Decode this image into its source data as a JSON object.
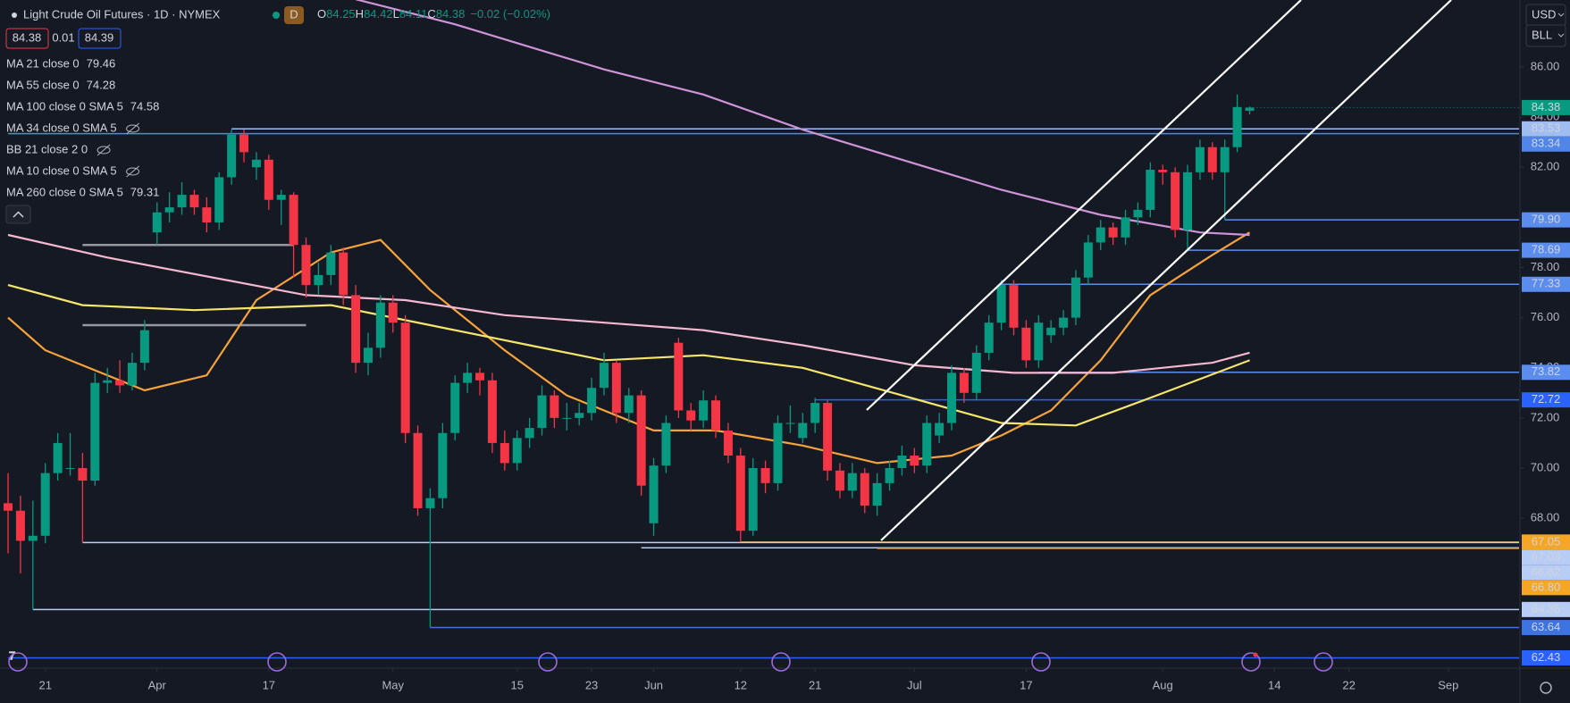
{
  "chart_data": {
    "type": "candlestick",
    "title": "Light Crude Oil Futures · 1D · NYMEX",
    "badge": "D",
    "ohlc": [
      "O",
      "84.25",
      "H",
      "84.42",
      "L",
      "84.11",
      "C",
      "84.38",
      "−0.02 (−0.02%)"
    ],
    "bid": "84.38",
    "spread": "0.01",
    "ask": "84.39",
    "currency": "USD",
    "unit": "BLL",
    "up_color": "#089981",
    "down_color": "#f23645",
    "grid": false,
    "ylim": [
      62.02,
      88.67
    ],
    "xlim": [
      -0.65,
      121.7
    ],
    "yticks": [
      {
        "value": 86,
        "label": "86.00"
      },
      {
        "value": 84,
        "label": "84.00"
      },
      {
        "value": 82,
        "label": "82.00"
      },
      {
        "value": 78,
        "label": "78.00"
      },
      {
        "value": 76,
        "label": "76.00"
      },
      {
        "value": 74,
        "label": "74.00"
      },
      {
        "value": 72,
        "label": "72.00"
      },
      {
        "value": 70,
        "label": "70.00"
      },
      {
        "value": 68,
        "label": "68.00"
      }
    ],
    "xticks": [
      {
        "value": 3,
        "label": "21"
      },
      {
        "value": 12,
        "label": "Apr"
      },
      {
        "value": 21,
        "label": "17"
      },
      {
        "value": 31,
        "label": "May"
      },
      {
        "value": 41,
        "label": "15"
      },
      {
        "value": 47,
        "label": "23"
      },
      {
        "value": 52,
        "label": "Jun"
      },
      {
        "value": 59,
        "label": "12"
      },
      {
        "value": 65,
        "label": "21"
      },
      {
        "value": 73,
        "label": "Jul"
      },
      {
        "value": 82,
        "label": "17"
      },
      {
        "value": 93,
        "label": "Aug"
      },
      {
        "value": 102,
        "label": "14"
      },
      {
        "value": 108,
        "label": "22"
      },
      {
        "value": 116,
        "label": "Sep"
      }
    ],
    "candles": [
      [
        68.6,
        69.8,
        66.6,
        68.3
      ],
      [
        68.3,
        68.9,
        65.8,
        67.1
      ],
      [
        67.1,
        68.7,
        64.36,
        67.3
      ],
      [
        67.3,
        70.2,
        67.0,
        69.8
      ],
      [
        69.8,
        71.4,
        69.5,
        71.0
      ],
      [
        70.0,
        71.4,
        69.7,
        70.0
      ],
      [
        70.0,
        70.6,
        67.03,
        69.5
      ],
      [
        69.5,
        73.8,
        69.3,
        73.4
      ],
      [
        73.4,
        74.0,
        73.0,
        73.5
      ],
      [
        73.5,
        74.3,
        73.0,
        73.3
      ],
      [
        73.3,
        74.6,
        73.1,
        74.2
      ],
      [
        74.2,
        75.9,
        73.9,
        75.5
      ],
      [
        79.4,
        80.6,
        78.9,
        80.2
      ],
      [
        80.2,
        81.0,
        79.8,
        80.4
      ],
      [
        80.4,
        81.4,
        80.1,
        80.9
      ],
      [
        80.9,
        81.1,
        80.1,
        80.4
      ],
      [
        80.4,
        80.8,
        79.4,
        79.8
      ],
      [
        79.8,
        81.8,
        79.5,
        81.6
      ],
      [
        81.6,
        83.5,
        81.3,
        83.3
      ],
      [
        83.3,
        83.5,
        82.2,
        82.6
      ],
      [
        82.0,
        82.6,
        81.5,
        82.3
      ],
      [
        82.3,
        82.5,
        80.3,
        80.7
      ],
      [
        80.7,
        81.1,
        79.7,
        80.9
      ],
      [
        80.9,
        81.0,
        77.6,
        78.9
      ],
      [
        78.9,
        79.2,
        76.8,
        77.3
      ],
      [
        77.3,
        78.2,
        76.9,
        77.7
      ],
      [
        77.7,
        78.9,
        77.3,
        78.6
      ],
      [
        78.6,
        78.8,
        76.5,
        76.9
      ],
      [
        76.9,
        77.3,
        73.8,
        74.2
      ],
      [
        74.2,
        75.4,
        73.7,
        74.8
      ],
      [
        74.8,
        76.9,
        74.4,
        76.6
      ],
      [
        76.6,
        76.9,
        75.4,
        75.8
      ],
      [
        75.8,
        76.1,
        71.0,
        71.4
      ],
      [
        71.4,
        71.7,
        68.1,
        68.4
      ],
      [
        68.4,
        69.2,
        63.64,
        68.8
      ],
      [
        68.8,
        71.8,
        68.4,
        71.4
      ],
      [
        71.4,
        73.7,
        71.1,
        73.4
      ],
      [
        73.4,
        74.2,
        73.0,
        73.8
      ],
      [
        73.8,
        74.0,
        72.9,
        73.5
      ],
      [
        73.5,
        73.8,
        70.6,
        71.0
      ],
      [
        71.0,
        71.5,
        69.9,
        70.2
      ],
      [
        70.2,
        71.5,
        69.9,
        71.2
      ],
      [
        71.2,
        72.0,
        70.8,
        71.6
      ],
      [
        71.6,
        73.3,
        71.3,
        72.9
      ],
      [
        72.9,
        73.1,
        71.6,
        72.0
      ],
      [
        72.0,
        72.6,
        71.5,
        72.0
      ],
      [
        72.0,
        72.6,
        71.7,
        72.2
      ],
      [
        72.2,
        73.6,
        71.9,
        73.2
      ],
      [
        73.2,
        74.6,
        72.9,
        74.2
      ],
      [
        74.2,
        74.3,
        71.8,
        72.2
      ],
      [
        72.2,
        73.2,
        71.8,
        72.9
      ],
      [
        72.9,
        73.1,
        68.9,
        69.3
      ],
      [
        67.8,
        70.4,
        67.3,
        70.1
      ],
      [
        70.1,
        72.1,
        69.8,
        71.8
      ],
      [
        75.0,
        75.2,
        72.0,
        72.3
      ],
      [
        72.3,
        72.6,
        71.5,
        71.9
      ],
      [
        71.9,
        73.1,
        71.6,
        72.7
      ],
      [
        72.7,
        72.9,
        71.2,
        71.5
      ],
      [
        71.5,
        71.8,
        70.2,
        70.5
      ],
      [
        70.5,
        70.8,
        67.05,
        67.5
      ],
      [
        67.5,
        70.4,
        67.3,
        70.0
      ],
      [
        70.0,
        70.3,
        69.0,
        69.4
      ],
      [
        69.4,
        72.1,
        69.1,
        71.8
      ],
      [
        71.8,
        72.5,
        71.4,
        71.8
      ],
      [
        71.2,
        72.2,
        71.0,
        71.8
      ],
      [
        71.8,
        72.8,
        71.4,
        72.6
      ],
      [
        72.6,
        72.7,
        69.5,
        69.9
      ],
      [
        69.9,
        70.2,
        68.8,
        69.1
      ],
      [
        69.1,
        70.2,
        68.8,
        69.8
      ],
      [
        69.8,
        70.0,
        68.2,
        68.5
      ],
      [
        68.5,
        69.8,
        68.1,
        69.4
      ],
      [
        69.4,
        70.3,
        69.1,
        70.0
      ],
      [
        70.0,
        70.9,
        69.7,
        70.5
      ],
      [
        70.5,
        70.8,
        69.8,
        70.1
      ],
      [
        70.1,
        72.1,
        69.8,
        71.8
      ],
      [
        71.3,
        72.2,
        71.0,
        71.8
      ],
      [
        71.8,
        74.1,
        71.5,
        73.8
      ],
      [
        73.8,
        74.0,
        72.6,
        73.0
      ],
      [
        73.0,
        74.9,
        72.7,
        74.6
      ],
      [
        74.6,
        76.1,
        74.3,
        75.8
      ],
      [
        75.8,
        77.5,
        75.5,
        77.3
      ],
      [
        77.3,
        77.5,
        75.3,
        75.6
      ],
      [
        75.6,
        75.9,
        74.0,
        74.3
      ],
      [
        74.3,
        76.1,
        74.0,
        75.8
      ],
      [
        75.3,
        75.9,
        75.0,
        75.6
      ],
      [
        75.6,
        76.3,
        75.3,
        76.0
      ],
      [
        76.0,
        77.9,
        75.7,
        77.6
      ],
      [
        77.6,
        79.3,
        77.3,
        79.0
      ],
      [
        79.0,
        79.9,
        78.7,
        79.6
      ],
      [
        79.6,
        79.8,
        78.9,
        79.2
      ],
      [
        79.2,
        80.3,
        78.9,
        80.0
      ],
      [
        80.0,
        80.6,
        79.7,
        80.3
      ],
      [
        80.3,
        82.2,
        80.0,
        81.9
      ],
      [
        81.9,
        82.1,
        81.3,
        81.8
      ],
      [
        81.8,
        82.0,
        79.2,
        79.5
      ],
      [
        79.5,
        82.1,
        78.69,
        81.8
      ],
      [
        81.8,
        83.1,
        81.5,
        82.8
      ],
      [
        82.8,
        83.0,
        81.5,
        81.8
      ],
      [
        81.8,
        83.1,
        79.9,
        82.8
      ],
      [
        82.8,
        84.9,
        82.6,
        84.4
      ],
      [
        84.25,
        84.42,
        84.11,
        84.38
      ]
    ],
    "series": [
      {
        "label": "MA 21 close 0",
        "last": 79.46,
        "color": "#f7a33b",
        "x": [
          0,
          3,
          11,
          16,
          20,
          26,
          30,
          34,
          40,
          45,
          52,
          57,
          64,
          70,
          76,
          80,
          84,
          88,
          92,
          97,
          100
        ],
        "values": [
          76.0,
          74.7,
          73.1,
          73.7,
          76.7,
          78.6,
          79.1,
          77.1,
          74.7,
          72.9,
          71.5,
          71.5,
          70.9,
          70.2,
          70.5,
          71.3,
          72.3,
          74.3,
          76.9,
          78.5,
          79.4
        ]
      },
      {
        "label": "MA 55 close 0",
        "last": 74.28,
        "color": "#f5e66b",
        "x": [
          0,
          6,
          15,
          26,
          34,
          42,
          48,
          56,
          64,
          72,
          80,
          86,
          92,
          100
        ],
        "values": [
          77.3,
          76.5,
          76.3,
          76.5,
          75.7,
          74.9,
          74.3,
          74.5,
          74.0,
          72.9,
          71.8,
          71.7,
          72.8,
          74.3
        ]
      },
      {
        "label": "MA 100 close 0 SMA 5",
        "last": 74.58,
        "color": "#f4b8cf",
        "x": [
          0,
          8,
          24,
          32,
          40,
          48,
          56,
          64,
          73,
          81,
          89,
          97,
          100
        ],
        "values": [
          79.3,
          78.4,
          76.9,
          76.7,
          76.1,
          75.8,
          75.5,
          74.9,
          74.1,
          73.8,
          73.8,
          74.2,
          74.6
        ]
      },
      {
        "label": "MA 34 close 0 SMA 5",
        "hidden": true
      },
      {
        "label": "BB 21 close 2 0",
        "hidden": true
      },
      {
        "label": "MA 10 close 0 SMA 5",
        "hidden": true
      },
      {
        "label": "MA 260 close 0 SMA 5",
        "last": 79.31,
        "color": "#cf93d8",
        "x": [
          28,
          36,
          48,
          56,
          64,
          72,
          80,
          88,
          96,
          100
        ],
        "values": [
          88.7,
          87.7,
          85.9,
          84.9,
          83.5,
          82.3,
          81.1,
          80.1,
          79.4,
          79.3
        ]
      }
    ],
    "levels": [
      {
        "value": 83.53,
        "from": 18,
        "color": "#9fbdf0",
        "text_color": "#131722"
      },
      {
        "value": 83.34,
        "from": 0,
        "color": "#4f86e8",
        "text_color": "#ffffff"
      },
      {
        "value": 79.9,
        "label": "79.90",
        "from": 98,
        "color": "#5b8def",
        "text_color": "#ffffff"
      },
      {
        "value": 78.69,
        "from": 95,
        "color": "#5b8def",
        "text_color": "#ffffff"
      },
      {
        "value": 77.33,
        "from": 80,
        "color": "#5b8def",
        "text_color": "#ffffff"
      },
      {
        "value": 73.82,
        "from": 83,
        "color": "#5b8def",
        "text_color": "#ffffff"
      },
      {
        "value": 72.72,
        "from": 65,
        "color": "#2962ff",
        "text_color": "#ffffff"
      },
      {
        "value": 67.05,
        "from": 59,
        "color": "#f5a623",
        "text_color": "#131722"
      },
      {
        "value": 67.03,
        "from": 6,
        "color": "#b8cdf5",
        "text_color": "#131722"
      },
      {
        "value": 66.82,
        "from": 51,
        "color": "#b8cdf5",
        "text_color": "#131722"
      },
      {
        "value": 66.8,
        "label": "66.80",
        "from": 70,
        "color": "#f5a623",
        "text_color": "#131722"
      },
      {
        "value": 64.36,
        "from": 2,
        "color": "#b8cdf5",
        "text_color": "#131722"
      },
      {
        "value": 63.64,
        "from": 34,
        "color": "#3d74e0",
        "text_color": "#ffffff"
      },
      {
        "value": 62.43,
        "from": 0,
        "color": "#2962ff",
        "text_color": "#ffffff"
      }
    ],
    "guides": [
      {
        "value": 78.9,
        "from": 6,
        "to": 23,
        "color": "#9598a1"
      },
      {
        "value": 75.7,
        "from": 6,
        "to": 24,
        "color": "#9598a1"
      }
    ]
  }
}
